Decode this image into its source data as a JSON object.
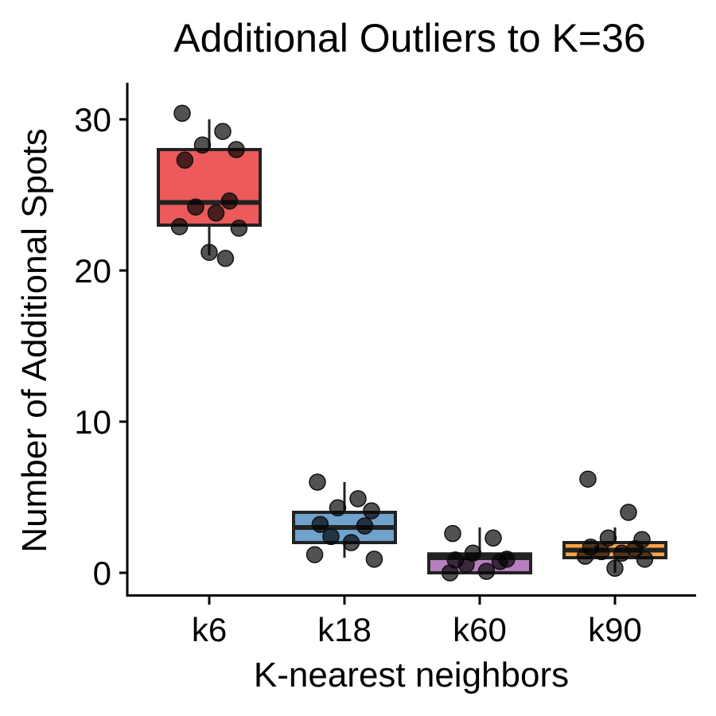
{
  "chart_data": {
    "type": "boxplot",
    "title": "Additional Outliers to K=36",
    "xlabel": "K-nearest neighbors",
    "ylabel": "Number of Additional Spots",
    "ylim": [
      -1.5,
      32.5
    ],
    "yticks": [
      0,
      10,
      20,
      30
    ],
    "categories": [
      "k6",
      "k18",
      "k60",
      "k90"
    ],
    "grid": false,
    "legend": "none",
    "colors": {
      "k6": "#E41A1C",
      "k18": "#377EB8",
      "k60": "#984EA3",
      "k90": "#FF7F00",
      "box_outline": "#222222",
      "point": "#000000"
    },
    "boxes": [
      {
        "category": "k6",
        "whisker_low": 21,
        "q1": 23,
        "median": 24.5,
        "q3": 28,
        "whisker_high": 30
      },
      {
        "category": "k18",
        "whisker_low": 1,
        "q1": 2,
        "median": 3,
        "q3": 4,
        "whisker_high": 6
      },
      {
        "category": "k60",
        "whisker_low": 0,
        "q1": 0,
        "median": 1,
        "q3": 1.25,
        "whisker_high": 3
      },
      {
        "category": "k90",
        "whisker_low": 0,
        "q1": 1,
        "median": 1.5,
        "q3": 2,
        "whisker_high": 3
      }
    ],
    "points": [
      {
        "category": "k6",
        "values": [
          30.4,
          29.2,
          28.3,
          28.0,
          27.3,
          24.6,
          24.2,
          23.8,
          22.9,
          22.8,
          21.2,
          20.8
        ]
      },
      {
        "category": "k18",
        "values": [
          6.0,
          4.9,
          4.3,
          4.1,
          3.2,
          3.1,
          2.4,
          2.0,
          1.2,
          0.9
        ]
      },
      {
        "category": "k60",
        "values": [
          2.6,
          2.3,
          1.3,
          0.9,
          0.85,
          0.75,
          0.55,
          0.1,
          0.0
        ]
      },
      {
        "category": "k90",
        "values": [
          6.2,
          4.0,
          2.3,
          2.2,
          1.7,
          1.6,
          1.4,
          1.3,
          1.1,
          0.9,
          0.3
        ]
      }
    ]
  }
}
